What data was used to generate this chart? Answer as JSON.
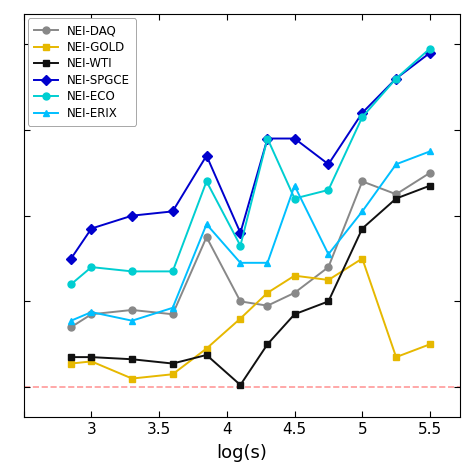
{
  "series": [
    {
      "label": "NEI-DAQ",
      "color": "#888888",
      "marker": "o",
      "x": [
        2.85,
        3.0,
        3.3,
        3.6,
        3.85,
        4.1,
        4.3,
        4.5,
        4.75,
        5.0,
        5.25,
        5.5
      ],
      "y": [
        0.14,
        0.17,
        0.18,
        0.17,
        0.35,
        0.2,
        0.19,
        0.22,
        0.28,
        0.48,
        0.45,
        0.5
      ]
    },
    {
      "label": "NEI-GOLD",
      "color": "#E6B800",
      "marker": "s",
      "x": [
        2.85,
        3.0,
        3.3,
        3.6,
        3.85,
        4.1,
        4.3,
        4.5,
        4.75,
        5.0,
        5.25,
        5.5
      ],
      "y": [
        0.055,
        0.06,
        0.02,
        0.03,
        0.09,
        0.16,
        0.22,
        0.26,
        0.25,
        0.3,
        0.07,
        0.1
      ]
    },
    {
      "label": "NEI-WTI",
      "color": "#111111",
      "marker": "s",
      "x": [
        2.85,
        3.0,
        3.3,
        3.6,
        3.85,
        4.1,
        4.3,
        4.5,
        4.75,
        5.0,
        5.25,
        5.5
      ],
      "y": [
        0.07,
        0.07,
        0.065,
        0.055,
        0.075,
        0.005,
        0.1,
        0.17,
        0.2,
        0.37,
        0.44,
        0.47
      ]
    },
    {
      "label": "NEI-SPGCE",
      "color": "#0000CD",
      "marker": "D",
      "x": [
        2.85,
        3.0,
        3.3,
        3.6,
        3.85,
        4.1,
        4.3,
        4.5,
        4.75,
        5.0,
        5.25,
        5.5
      ],
      "y": [
        0.3,
        0.37,
        0.4,
        0.41,
        0.54,
        0.36,
        0.58,
        0.58,
        0.52,
        0.64,
        0.72,
        0.78
      ]
    },
    {
      "label": "NEI-ECO",
      "color": "#00CED1",
      "marker": "o",
      "x": [
        2.85,
        3.0,
        3.3,
        3.6,
        3.85,
        4.1,
        4.3,
        4.5,
        4.75,
        5.0,
        5.25,
        5.5
      ],
      "y": [
        0.24,
        0.28,
        0.27,
        0.27,
        0.48,
        0.33,
        0.58,
        0.44,
        0.46,
        0.63,
        0.72,
        0.79
      ]
    },
    {
      "label": "NEI-ERIX",
      "color": "#00BFFF",
      "marker": "^",
      "x": [
        2.85,
        3.0,
        3.3,
        3.6,
        3.85,
        4.1,
        4.3,
        4.5,
        4.75,
        5.0,
        5.25,
        5.5
      ],
      "y": [
        0.155,
        0.175,
        0.155,
        0.185,
        0.38,
        0.29,
        0.29,
        0.47,
        0.31,
        0.41,
        0.52,
        0.55
      ]
    }
  ],
  "hline_y": 0.0,
  "hline_color": "#FF9999",
  "xlim": [
    2.65,
    5.72
  ],
  "ylim": [
    -0.07,
    0.87
  ],
  "xticks": [
    2.5,
    3.0,
    3.5,
    4.0,
    4.5,
    5.0,
    5.5
  ],
  "xticklabels": [
    "",
    "3",
    "3.5",
    "4",
    "4.5",
    "5",
    "5.5"
  ],
  "ytick_positions": [
    0.0,
    0.2,
    0.4,
    0.6,
    0.8
  ],
  "xlabel": "log(s)",
  "background_color": "#ffffff",
  "linewidth": 1.4,
  "markersize": 5
}
